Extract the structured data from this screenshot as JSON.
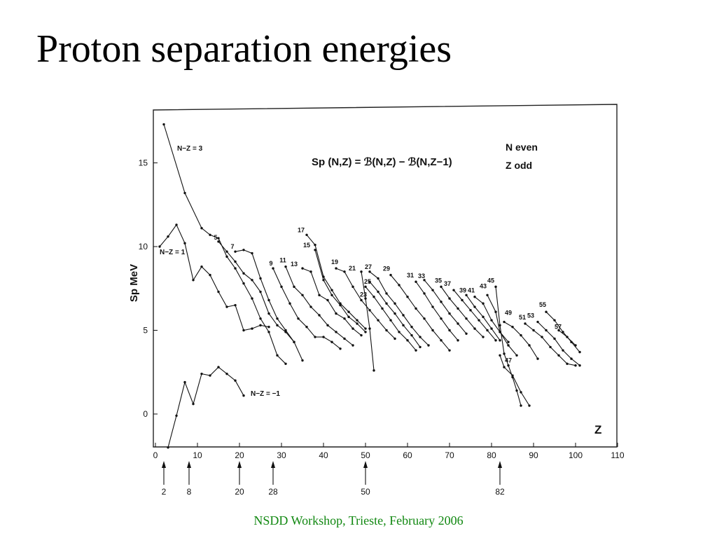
{
  "slide": {
    "title": "Proton separation energies",
    "footer": "NSDD Workshop, Trieste, February 2006"
  },
  "colors": {
    "footer": "#118811",
    "ink": "#111111"
  },
  "chart_data": {
    "type": "line",
    "xlabel": "Z",
    "ylabel": "Sp MeV",
    "xlim": [
      0,
      110
    ],
    "ylim": [
      -2,
      18
    ],
    "x_ticks": [
      "0",
      "10",
      "20",
      "30",
      "40",
      "50",
      "60",
      "70",
      "80",
      "90",
      "100",
      "110"
    ],
    "y_ticks": [
      "0",
      "5",
      "10",
      "15"
    ],
    "grid": false,
    "formula": "Sp (N,Z) = ℬ(N,Z) − ℬ(N,Z−1)",
    "legend": [
      "N  even",
      "Z  odd"
    ],
    "magic_numbers": [
      "2",
      "8",
      "20",
      "28",
      "50",
      "82"
    ],
    "series": [
      {
        "name": "N−Z = 3",
        "x": [
          2,
          7,
          11,
          13,
          15,
          17,
          19,
          21,
          23,
          25,
          27,
          29,
          31
        ],
        "y": [
          17.3,
          13.2,
          11.1,
          10.7,
          10.5,
          9.4,
          8.7,
          7.8,
          6.9,
          5.7,
          4.9,
          3.5,
          3.0
        ]
      },
      {
        "name": "N−Z = 1",
        "x": [
          1,
          3,
          5,
          7,
          9,
          11,
          13,
          15,
          17,
          19,
          21,
          23,
          25,
          27
        ],
        "y": [
          10.0,
          10.6,
          11.3,
          10.2,
          8.0,
          8.8,
          8.3,
          7.3,
          6.4,
          6.5,
          5.0,
          5.1,
          5.3,
          5.2
        ]
      },
      {
        "name": "N−Z = −1",
        "x": [
          3,
          5,
          7,
          9,
          11,
          13,
          15,
          17,
          19,
          21
        ],
        "y": [
          -2.0,
          -0.1,
          1.9,
          0.6,
          2.4,
          2.3,
          2.8,
          2.4,
          2.0,
          1.1
        ]
      }
    ],
    "sequences": [
      {
        "label": "5",
        "x": [
          15,
          17,
          19,
          21,
          23,
          25,
          27,
          29,
          31,
          33
        ],
        "y": [
          10.3,
          9.7,
          9.1,
          8.4,
          8.0,
          7.3,
          6.0,
          5.3,
          4.9,
          4.3
        ]
      },
      {
        "label": "7",
        "x": [
          19,
          21,
          23,
          25,
          27,
          29,
          31,
          33,
          35
        ],
        "y": [
          9.7,
          9.8,
          9.6,
          8.1,
          6.8,
          5.7,
          5.0,
          4.3,
          3.2
        ]
      },
      {
        "label": "9",
        "x": [
          28,
          30,
          32,
          34,
          36,
          38,
          40,
          42,
          44
        ],
        "y": [
          8.7,
          7.6,
          6.6,
          5.7,
          5.2,
          4.6,
          4.6,
          4.3,
          3.9
        ]
      },
      {
        "label": "11",
        "x": [
          31,
          33,
          35,
          37,
          39,
          41,
          43,
          45,
          47
        ],
        "y": [
          8.8,
          7.6,
          7.1,
          6.4,
          5.9,
          5.3,
          4.9,
          4.5,
          4.1
        ]
      },
      {
        "label": "13",
        "x": [
          35,
          37,
          39,
          41,
          43,
          45,
          47,
          49
        ],
        "y": [
          8.7,
          8.5,
          7.1,
          6.8,
          6.0,
          5.7,
          5.1,
          4.7
        ]
      },
      {
        "label": "15",
        "x": [
          38,
          40,
          42,
          44,
          46,
          48,
          50
        ],
        "y": [
          9.8,
          8.0,
          7.1,
          6.5,
          5.8,
          5.4,
          4.9
        ]
      },
      {
        "label": "17",
        "x": [
          36,
          38,
          40,
          42,
          44,
          46,
          48,
          50
        ],
        "y": [
          10.7,
          10.1,
          8.2,
          7.4,
          6.6,
          6.1,
          5.6,
          5.1
        ]
      },
      {
        "label": "19",
        "x": [
          43,
          45,
          47,
          49,
          51,
          53,
          55,
          57
        ],
        "y": [
          8.7,
          8.5,
          7.6,
          6.8,
          6.2,
          5.6,
          5.0,
          4.5
        ]
      },
      {
        "label": "21",
        "x": [
          49,
          50,
          51,
          52
        ],
        "y": [
          8.5,
          6.9,
          5.1,
          2.6
        ]
      },
      {
        "label": "23",
        "x": [
          50,
          52,
          54,
          56,
          58,
          60,
          62
        ],
        "y": [
          7.6,
          7.0,
          6.3,
          5.6,
          4.9,
          4.4,
          3.8
        ]
      },
      {
        "label": "25",
        "x": [
          51,
          53,
          55,
          57,
          59,
          61,
          63
        ],
        "y": [
          7.9,
          7.3,
          6.6,
          6.0,
          5.3,
          4.7,
          4.0
        ]
      },
      {
        "label": "27",
        "x": [
          51,
          53,
          55,
          57,
          59,
          61,
          63,
          65
        ],
        "y": [
          8.5,
          8.1,
          7.2,
          6.6,
          5.9,
          5.2,
          4.6,
          4.1
        ]
      },
      {
        "label": "29",
        "x": [
          56,
          58,
          60,
          62,
          64,
          66,
          68,
          70
        ],
        "y": [
          8.3,
          7.7,
          7.0,
          6.3,
          5.7,
          5.0,
          4.4,
          3.8
        ]
      },
      {
        "label": "31",
        "x": [
          62,
          64,
          66,
          68,
          70,
          72
        ],
        "y": [
          7.9,
          7.2,
          6.4,
          5.7,
          5.0,
          4.4
        ]
      },
      {
        "label": "33",
        "x": [
          64,
          66,
          68,
          70,
          72,
          74
        ],
        "y": [
          8.0,
          7.4,
          6.7,
          6.0,
          5.4,
          4.8
        ]
      },
      {
        "label": "35",
        "x": [
          68,
          70,
          72,
          74,
          76,
          78
        ],
        "y": [
          7.6,
          6.9,
          6.3,
          5.7,
          5.1,
          4.6
        ]
      },
      {
        "label": "37",
        "x": [
          71,
          73,
          75,
          77,
          79,
          81
        ],
        "y": [
          7.4,
          6.8,
          6.2,
          5.6,
          5.0,
          4.4
        ]
      },
      {
        "label": "39",
        "x": [
          74,
          76,
          78,
          80,
          82
        ],
        "y": [
          7.1,
          6.4,
          5.8,
          5.1,
          4.4
        ]
      },
      {
        "label": "41",
        "x": [
          76,
          78,
          80,
          82,
          84
        ],
        "y": [
          7.0,
          6.6,
          5.6,
          4.9,
          4.3
        ]
      },
      {
        "label": "43",
        "x": [
          79,
          81,
          82,
          84,
          86
        ],
        "y": [
          7.1,
          6.1,
          4.9,
          4.1,
          3.5
        ]
      },
      {
        "label": "45",
        "x": [
          81,
          82,
          83,
          84,
          85,
          86,
          87
        ],
        "y": [
          7.6,
          5.3,
          3.6,
          2.9,
          2.2,
          1.4,
          0.5
        ]
      },
      {
        "label": "47",
        "x": [
          82,
          83,
          85,
          87,
          89
        ],
        "y": [
          3.5,
          2.8,
          2.3,
          1.3,
          0.5
        ]
      },
      {
        "label": "49",
        "x": [
          83,
          85,
          87,
          89,
          91
        ],
        "y": [
          5.5,
          5.2,
          4.7,
          4.1,
          3.3
        ]
      },
      {
        "label": "51",
        "x": [
          88,
          90,
          92,
          94,
          96,
          98,
          100
        ],
        "y": [
          5.4,
          5.0,
          4.6,
          4.0,
          3.5,
          3.0,
          2.9
        ]
      },
      {
        "label": "53",
        "x": [
          91,
          93,
          95,
          97,
          99,
          101
        ],
        "y": [
          5.5,
          5.0,
          4.5,
          3.8,
          3.3,
          2.9
        ]
      },
      {
        "label": "55",
        "x": [
          93,
          95,
          97,
          99,
          101
        ],
        "y": [
          6.1,
          5.6,
          4.9,
          4.3,
          3.7
        ]
      },
      {
        "label": "57",
        "x": [
          96,
          98,
          100
        ],
        "y": [
          5.0,
          4.6,
          4.1
        ]
      }
    ]
  }
}
